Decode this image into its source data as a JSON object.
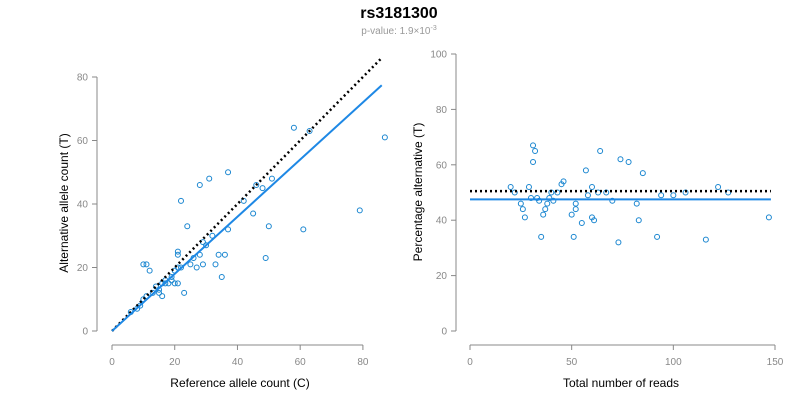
{
  "title": "rs3181300",
  "subtitle": {
    "prefix": "p-value: 1.9",
    "times": "×",
    "base": "10",
    "exponent": "-3"
  },
  "colors": {
    "points": "#1a86d0",
    "fit_line": "#1e88e5",
    "reference_line": "#000000",
    "axis": "#888888",
    "subtitle": "#999999"
  },
  "chart_data": [
    {
      "id": "left",
      "type": "scatter",
      "xlabel": "Reference allele count (C)",
      "ylabel": "Alternative allele count (T)",
      "xlim": [
        0,
        88
      ],
      "ylim": [
        0,
        80
      ],
      "xticks": [
        0,
        20,
        40,
        60,
        80
      ],
      "yticks": [
        0,
        20,
        40,
        60,
        80
      ],
      "grid": false,
      "points": [
        [
          6,
          6
        ],
        [
          8,
          7
        ],
        [
          9,
          8
        ],
        [
          10,
          10
        ],
        [
          10,
          21
        ],
        [
          11,
          11
        ],
        [
          11,
          21
        ],
        [
          12,
          19
        ],
        [
          13,
          12
        ],
        [
          14,
          14
        ],
        [
          15,
          12
        ],
        [
          15,
          13
        ],
        [
          16,
          11
        ],
        [
          16,
          15
        ],
        [
          17,
          16
        ],
        [
          17,
          15
        ],
        [
          18,
          15
        ],
        [
          19,
          17
        ],
        [
          19,
          16
        ],
        [
          20,
          19
        ],
        [
          20,
          15
        ],
        [
          21,
          20
        ],
        [
          21,
          24
        ],
        [
          21,
          25
        ],
        [
          21,
          15
        ],
        [
          22,
          41
        ],
        [
          22,
          20
        ],
        [
          23,
          12
        ],
        [
          24,
          33
        ],
        [
          25,
          21
        ],
        [
          26,
          23
        ],
        [
          27,
          20
        ],
        [
          28,
          46
        ],
        [
          28,
          24
        ],
        [
          29,
          28
        ],
        [
          29,
          21
        ],
        [
          30,
          27
        ],
        [
          31,
          48
        ],
        [
          32,
          30
        ],
        [
          33,
          21
        ],
        [
          34,
          24
        ],
        [
          35,
          17
        ],
        [
          36,
          24
        ],
        [
          37,
          50
        ],
        [
          37,
          32
        ],
        [
          42,
          41
        ],
        [
          45,
          37
        ],
        [
          46,
          46
        ],
        [
          48,
          45
        ],
        [
          49,
          23
        ],
        [
          50,
          33
        ],
        [
          51,
          48
        ],
        [
          58,
          64
        ],
        [
          61,
          32
        ],
        [
          63,
          63
        ],
        [
          79,
          38
        ],
        [
          87,
          61
        ]
      ],
      "fit_line": [
        [
          0,
          0
        ],
        [
          86,
          77.4
        ]
      ],
      "reference_line": [
        [
          0,
          0
        ],
        [
          86,
          86
        ]
      ]
    },
    {
      "id": "right",
      "type": "scatter",
      "xlabel": "Total number of reads",
      "ylabel": "Percentage alternative (T)",
      "xlim": [
        0,
        150
      ],
      "ylim": [
        0,
        100
      ],
      "xticks": [
        0,
        50,
        100,
        150
      ],
      "yticks": [
        0,
        20,
        40,
        60,
        80,
        100
      ],
      "grid": false,
      "points": [
        [
          20,
          52
        ],
        [
          22,
          50
        ],
        [
          25,
          46
        ],
        [
          26,
          44
        ],
        [
          27,
          41
        ],
        [
          29,
          52
        ],
        [
          30,
          48
        ],
        [
          31,
          61
        ],
        [
          31,
          67
        ],
        [
          32,
          65
        ],
        [
          33,
          48
        ],
        [
          34,
          47
        ],
        [
          35,
          34
        ],
        [
          36,
          42
        ],
        [
          37,
          44
        ],
        [
          38,
          46
        ],
        [
          39,
          48
        ],
        [
          40,
          50
        ],
        [
          41,
          47
        ],
        [
          43,
          50
        ],
        [
          45,
          53
        ],
        [
          46,
          54
        ],
        [
          50,
          42
        ],
        [
          51,
          34
        ],
        [
          52,
          46
        ],
        [
          52,
          44
        ],
        [
          55,
          39
        ],
        [
          57,
          58
        ],
        [
          58,
          49
        ],
        [
          60,
          41
        ],
        [
          60,
          52
        ],
        [
          61,
          40
        ],
        [
          63,
          50
        ],
        [
          64,
          65
        ],
        [
          67,
          50
        ],
        [
          70,
          47
        ],
        [
          73,
          32
        ],
        [
          74,
          62
        ],
        [
          78,
          61
        ],
        [
          82,
          46
        ],
        [
          83,
          40
        ],
        [
          85,
          57
        ],
        [
          92,
          34
        ],
        [
          94,
          49
        ],
        [
          100,
          49
        ],
        [
          106,
          50
        ],
        [
          116,
          33
        ],
        [
          122,
          52
        ],
        [
          127,
          50
        ],
        [
          147,
          41
        ]
      ],
      "fit_line": [
        [
          0,
          47.5
        ],
        [
          148,
          47.5
        ]
      ],
      "reference_line": [
        [
          0,
          50.5
        ],
        [
          148,
          50.5
        ]
      ]
    }
  ]
}
